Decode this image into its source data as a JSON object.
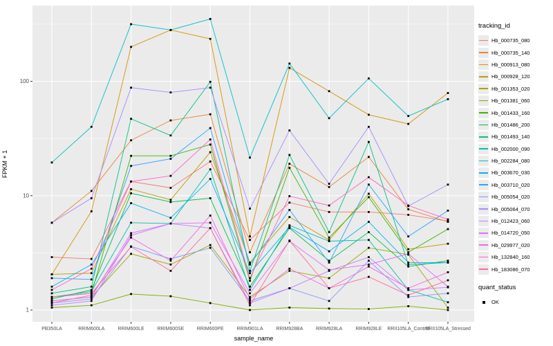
{
  "chart_data": {
    "type": "line",
    "title": "",
    "xlabel": "sample_name",
    "ylabel": "FPKM + 1",
    "y_scale": "log10",
    "y_ticks": [
      1,
      10,
      100
    ],
    "y_minor": [
      3.162,
      31.62,
      316.2
    ],
    "ylim": [
      0.79,
      460
    ],
    "grid": "on",
    "legend_position": "right",
    "legend_title": "tracking_id",
    "point_shape": "black-square",
    "categories": [
      "PB350LA",
      "RRIM600LA",
      "RRIM600LE",
      "RRIM600SE",
      "RRIM600PE",
      "RRIM901LA",
      "RRIM928BA",
      "RRIM928LA",
      "RRIM928LE",
      "RRII105LA_Control",
      "RRII105LA_Stressed"
    ],
    "series": [
      {
        "id": "Hb_000735_080",
        "color": "#F8766D",
        "values": [
          2.9,
          2.8,
          13.3,
          11.7,
          19.9,
          4.1,
          8.7,
          7.2,
          7.2,
          6.8,
          6.0
        ]
      },
      {
        "id": "Hb_000735_140",
        "color": "#EA8331",
        "values": [
          5.8,
          11.0,
          30.5,
          45.5,
          51.5,
          3.2,
          19.0,
          11.9,
          21.8,
          7.6,
          5.9
        ]
      },
      {
        "id": "Hb_000913_080",
        "color": "#D89000",
        "values": [
          2.05,
          7.3,
          200,
          281,
          235,
          4.4,
          131,
          82,
          51,
          42.4,
          79
        ]
      },
      {
        "id": "Hb_000928_120",
        "color": "#C09B00",
        "values": [
          2.05,
          2.1,
          11.4,
          9.2,
          24,
          2.6,
          6.5,
          4.1,
          10.4,
          3.4,
          3.8
        ]
      },
      {
        "id": "Hb_001353_020",
        "color": "#A3A500",
        "values": [
          1.2,
          1.3,
          3.1,
          2.5,
          3.7,
          1.3,
          2.2,
          1.9,
          3.5,
          3.05,
          1.05
        ]
      },
      {
        "id": "Hb_001381_060",
        "color": "#7CAE00",
        "values": [
          1.05,
          1.1,
          1.38,
          1.32,
          1.15,
          1.0,
          1.05,
          1.03,
          1.02,
          1.08,
          1.0
        ]
      },
      {
        "id": "Hb_001433_160",
        "color": "#39B600",
        "values": [
          1.3,
          1.4,
          22.3,
          22.3,
          28,
          1.8,
          17.5,
          4.3,
          9.7,
          3.2,
          5.1
        ]
      },
      {
        "id": "Hb_001486_200",
        "color": "#00BB4E",
        "values": [
          1.25,
          1.5,
          10.5,
          8.8,
          9.5,
          1.6,
          5.2,
          2.7,
          4.8,
          2.4,
          2.7
        ]
      },
      {
        "id": "Hb_001493_140",
        "color": "#00C087",
        "values": [
          1.4,
          1.6,
          47,
          33.6,
          99,
          2.2,
          22.7,
          4.8,
          29.5,
          2.5,
          2.6
        ]
      },
      {
        "id": "Hb_002000_090",
        "color": "#00C0AF",
        "values": [
          1.3,
          1.45,
          5.8,
          5.7,
          17,
          1.5,
          5.5,
          4.0,
          4.1,
          1.5,
          1.17
        ]
      },
      {
        "id": "Hb_002284_080",
        "color": "#00BFC4",
        "values": [
          19.5,
          40,
          316,
          281,
          351,
          21.5,
          143,
          47.6,
          106,
          49.7,
          69.8
        ]
      },
      {
        "id": "Hb_003670_030",
        "color": "#00B2F3",
        "values": [
          1.6,
          2.5,
          8.6,
          6.4,
          14,
          2.1,
          5.3,
          3.26,
          5.9,
          2.6,
          2.6
        ]
      },
      {
        "id": "Hb_003710_020",
        "color": "#29A3FF",
        "values": [
          1.9,
          1.85,
          18.2,
          21,
          39,
          2.5,
          7.5,
          2.6,
          12.5,
          4.4,
          7.4
        ]
      },
      {
        "id": "Hb_005054_020",
        "color": "#7F96FF",
        "values": [
          1.15,
          1.25,
          3.6,
          2.8,
          3.5,
          1.2,
          1.55,
          1.2,
          2.7,
          1.3,
          1.4
        ]
      },
      {
        "id": "Hb_005064_070",
        "color": "#A58AFF",
        "values": [
          5.8,
          9.5,
          88,
          80,
          88,
          7.7,
          37.2,
          12.7,
          40,
          8.1,
          12.5
        ]
      },
      {
        "id": "Hb_012423_060",
        "color": "#C77CFF",
        "values": [
          1.1,
          1.2,
          4.5,
          5.7,
          5.2,
          1.15,
          1.55,
          2.2,
          2.9,
          1.5,
          1.58
        ]
      },
      {
        "id": "Hb_014720_050",
        "color": "#E06EF7",
        "values": [
          1.2,
          1.3,
          4.7,
          5.7,
          5.8,
          1.4,
          4.0,
          2.24,
          2.5,
          3.1,
          1.6
        ]
      },
      {
        "id": "Hb_029977_020",
        "color": "#F564E4",
        "values": [
          1.15,
          1.35,
          4.3,
          2.7,
          6.7,
          1.25,
          2.3,
          1.55,
          2.4,
          1.55,
          2.14
        ]
      },
      {
        "id": "Hb_132840_160",
        "color": "#FF61C7",
        "values": [
          1.5,
          2.3,
          13.3,
          14.9,
          31,
          1.9,
          9.9,
          8.2,
          14.5,
          8.2,
          6.2
        ]
      },
      {
        "id": "Hb_183086_070",
        "color": "#FF689E",
        "values": [
          1.3,
          1.4,
          3.57,
          2.2,
          5.2,
          1.1,
          4.05,
          1.55,
          1.95,
          1.35,
          1.82
        ]
      }
    ],
    "quant_status": {
      "title": "quant_status",
      "items": [
        "OK"
      ]
    }
  },
  "style": {
    "panel_bg": "#EBEBEB",
    "grid_color": "#FFFFFF",
    "tick_color": "#333333",
    "tick_label_color": "#4D4D4D"
  }
}
